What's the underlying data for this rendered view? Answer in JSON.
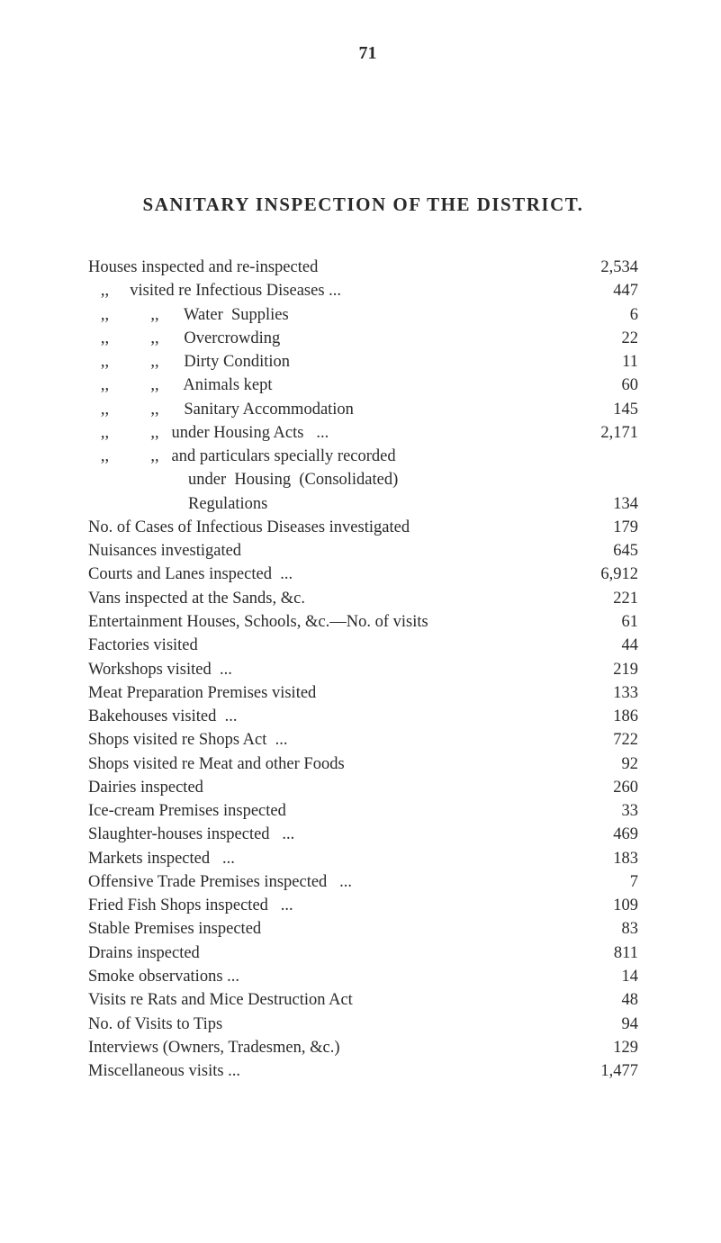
{
  "page_number": "71",
  "heading": "SANITARY INSPECTION OF THE DISTRICT.",
  "entries": [
    {
      "label": "Houses inspected and re-inspected",
      "value": "2,534"
    },
    {
      "label": "   ,,     visited re Infectious Diseases ...",
      "value": "447"
    },
    {
      "label": "   ,,          ,,      Water  Supplies",
      "value": "6"
    },
    {
      "label": "   ,,          ,,      Overcrowding",
      "value": "22"
    },
    {
      "label": "   ,,          ,,      Dirty Condition",
      "value": "11"
    },
    {
      "label": "   ,,          ,,      Animals kept",
      "value": "60"
    },
    {
      "label": "   ,,          ,,      Sanitary Accommodation",
      "value": "145"
    },
    {
      "label": "   ,,          ,,   under Housing Acts   ...",
      "value": "2,171"
    },
    {
      "label": "   ,,          ,,   and particulars specially recorded",
      "value": ""
    },
    {
      "label": "                        under  Housing  (Consolidated)",
      "value": ""
    },
    {
      "label": "                        Regulations",
      "value": "134"
    },
    {
      "label": "No. of Cases of Infectious Diseases investigated",
      "value": "179"
    },
    {
      "label": "Nuisances investigated",
      "value": "645"
    },
    {
      "label": "Courts and Lanes inspected  ...",
      "value": "6,912"
    },
    {
      "label": "Vans inspected at the Sands, &c.",
      "value": "221"
    },
    {
      "label": "Entertainment Houses, Schools, &c.—No. of visits",
      "value": "61"
    },
    {
      "label": "Factories visited",
      "value": "44"
    },
    {
      "label": "Workshops visited  ...",
      "value": "219"
    },
    {
      "label": "Meat Preparation Premises visited",
      "value": "133"
    },
    {
      "label": "Bakehouses visited  ...",
      "value": "186"
    },
    {
      "label": "Shops visited re Shops Act  ...",
      "value": "722"
    },
    {
      "label": "Shops visited re Meat and other Foods",
      "value": "92"
    },
    {
      "label": "Dairies inspected",
      "value": "260"
    },
    {
      "label": "Ice-cream Premises inspected",
      "value": "33"
    },
    {
      "label": "Slaughter-houses inspected   ...",
      "value": "469"
    },
    {
      "label": "Markets inspected   ...",
      "value": "183"
    },
    {
      "label": "Offensive Trade Premises inspected   ...",
      "value": "7"
    },
    {
      "label": "Fried Fish Shops inspected   ...",
      "value": "109"
    },
    {
      "label": "Stable Premises inspected",
      "value": "83"
    },
    {
      "label": "Drains inspected",
      "value": "811"
    },
    {
      "label": "Smoke observations ...",
      "value": "14"
    },
    {
      "label": "Visits re Rats and Mice Destruction Act",
      "value": "48"
    },
    {
      "label": "No. of Visits to Tips",
      "value": "94"
    },
    {
      "label": "Interviews (Owners, Tradesmen, &c.)",
      "value": "129"
    },
    {
      "label": "Miscellaneous visits ...",
      "value": "1,477"
    }
  ],
  "colors": {
    "background": "#ffffff",
    "text": "#2a2a2a"
  },
  "typography": {
    "body_fontsize": 18.5,
    "heading_fontsize": 21,
    "pagenum_fontsize": 20,
    "font_family": "Times New Roman"
  }
}
